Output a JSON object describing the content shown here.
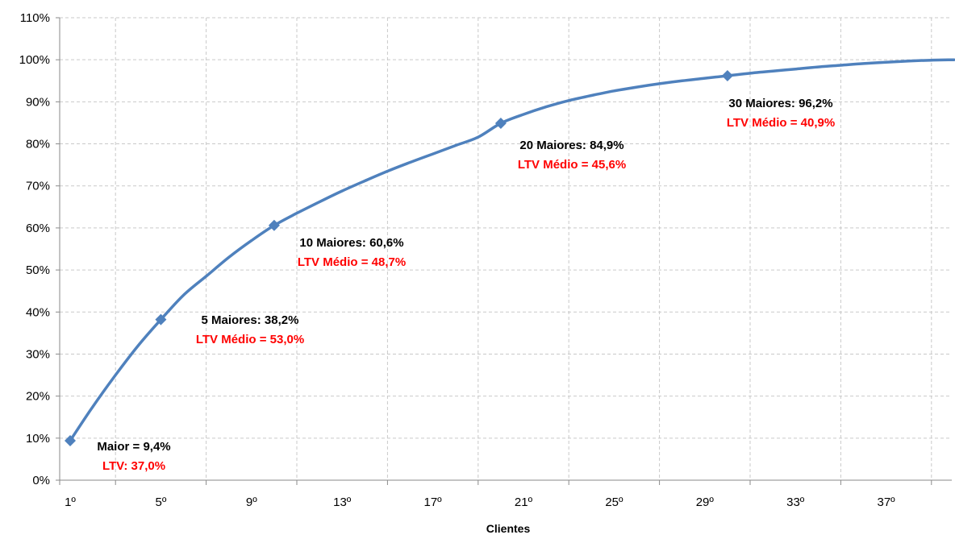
{
  "colors": {
    "series": "#4f81bd",
    "ltv_text": "#ff0000"
  },
  "chart_data": {
    "type": "line",
    "title": "",
    "xlabel": "Clientes",
    "ylabel": "",
    "x_range": [
      1,
      40
    ],
    "ylim": [
      0,
      110
    ],
    "y_ticks": [
      0,
      10,
      20,
      30,
      40,
      50,
      60,
      70,
      80,
      90,
      100,
      110
    ],
    "y_tick_labels": [
      "0%",
      "10%",
      "20%",
      "30%",
      "40%",
      "50%",
      "60%",
      "70%",
      "80%",
      "90%",
      "100%",
      "110%"
    ],
    "x_tick_values": [
      1,
      5,
      9,
      13,
      17,
      21,
      25,
      29,
      33,
      37
    ],
    "x_tick_labels": [
      "1º",
      "5º",
      "9º",
      "13º",
      "17º",
      "21º",
      "25º",
      "29º",
      "33º",
      "37º"
    ],
    "grid": true,
    "legend": "none",
    "series": [
      {
        "x": [
          1,
          2,
          3,
          4,
          5,
          6,
          7,
          8,
          9,
          10,
          11,
          12,
          13,
          14,
          15,
          16,
          17,
          18,
          19,
          20,
          21,
          22,
          23,
          24,
          25,
          26,
          27,
          28,
          29,
          30,
          31,
          32,
          33,
          34,
          35,
          36,
          37,
          38,
          39,
          40
        ],
        "values": [
          9.4,
          17.5,
          25.0,
          32.0,
          38.2,
          44.0,
          48.5,
          53.0,
          57.0,
          60.6,
          63.5,
          66.2,
          68.8,
          71.2,
          73.5,
          75.6,
          77.6,
          79.6,
          81.6,
          84.9,
          87.0,
          88.8,
          90.3,
          91.5,
          92.6,
          93.5,
          94.3,
          95.0,
          95.6,
          96.2,
          96.8,
          97.3,
          97.8,
          98.3,
          98.7,
          99.1,
          99.4,
          99.7,
          99.9,
          100.0
        ]
      }
    ],
    "markers": [
      {
        "x": 1,
        "y": 9.4
      },
      {
        "x": 5,
        "y": 38.2
      },
      {
        "x": 10,
        "y": 60.6
      },
      {
        "x": 20,
        "y": 84.9
      },
      {
        "x": 30,
        "y": 96.2
      }
    ],
    "annotations": [
      {
        "main": "Maior = 9,4%",
        "ltv": "LTV: 37,0%"
      },
      {
        "main": "5 Maiores: 38,2%",
        "ltv": "LTV Médio = 53,0%"
      },
      {
        "main": "10 Maiores: 60,6%",
        "ltv": "LTV Médio = 48,7%"
      },
      {
        "main": "20 Maiores: 84,9%",
        "ltv": "LTV Médio = 45,6%"
      },
      {
        "main": "30 Maiores: 96,2%",
        "ltv": "LTV Médio = 40,9%"
      }
    ]
  }
}
